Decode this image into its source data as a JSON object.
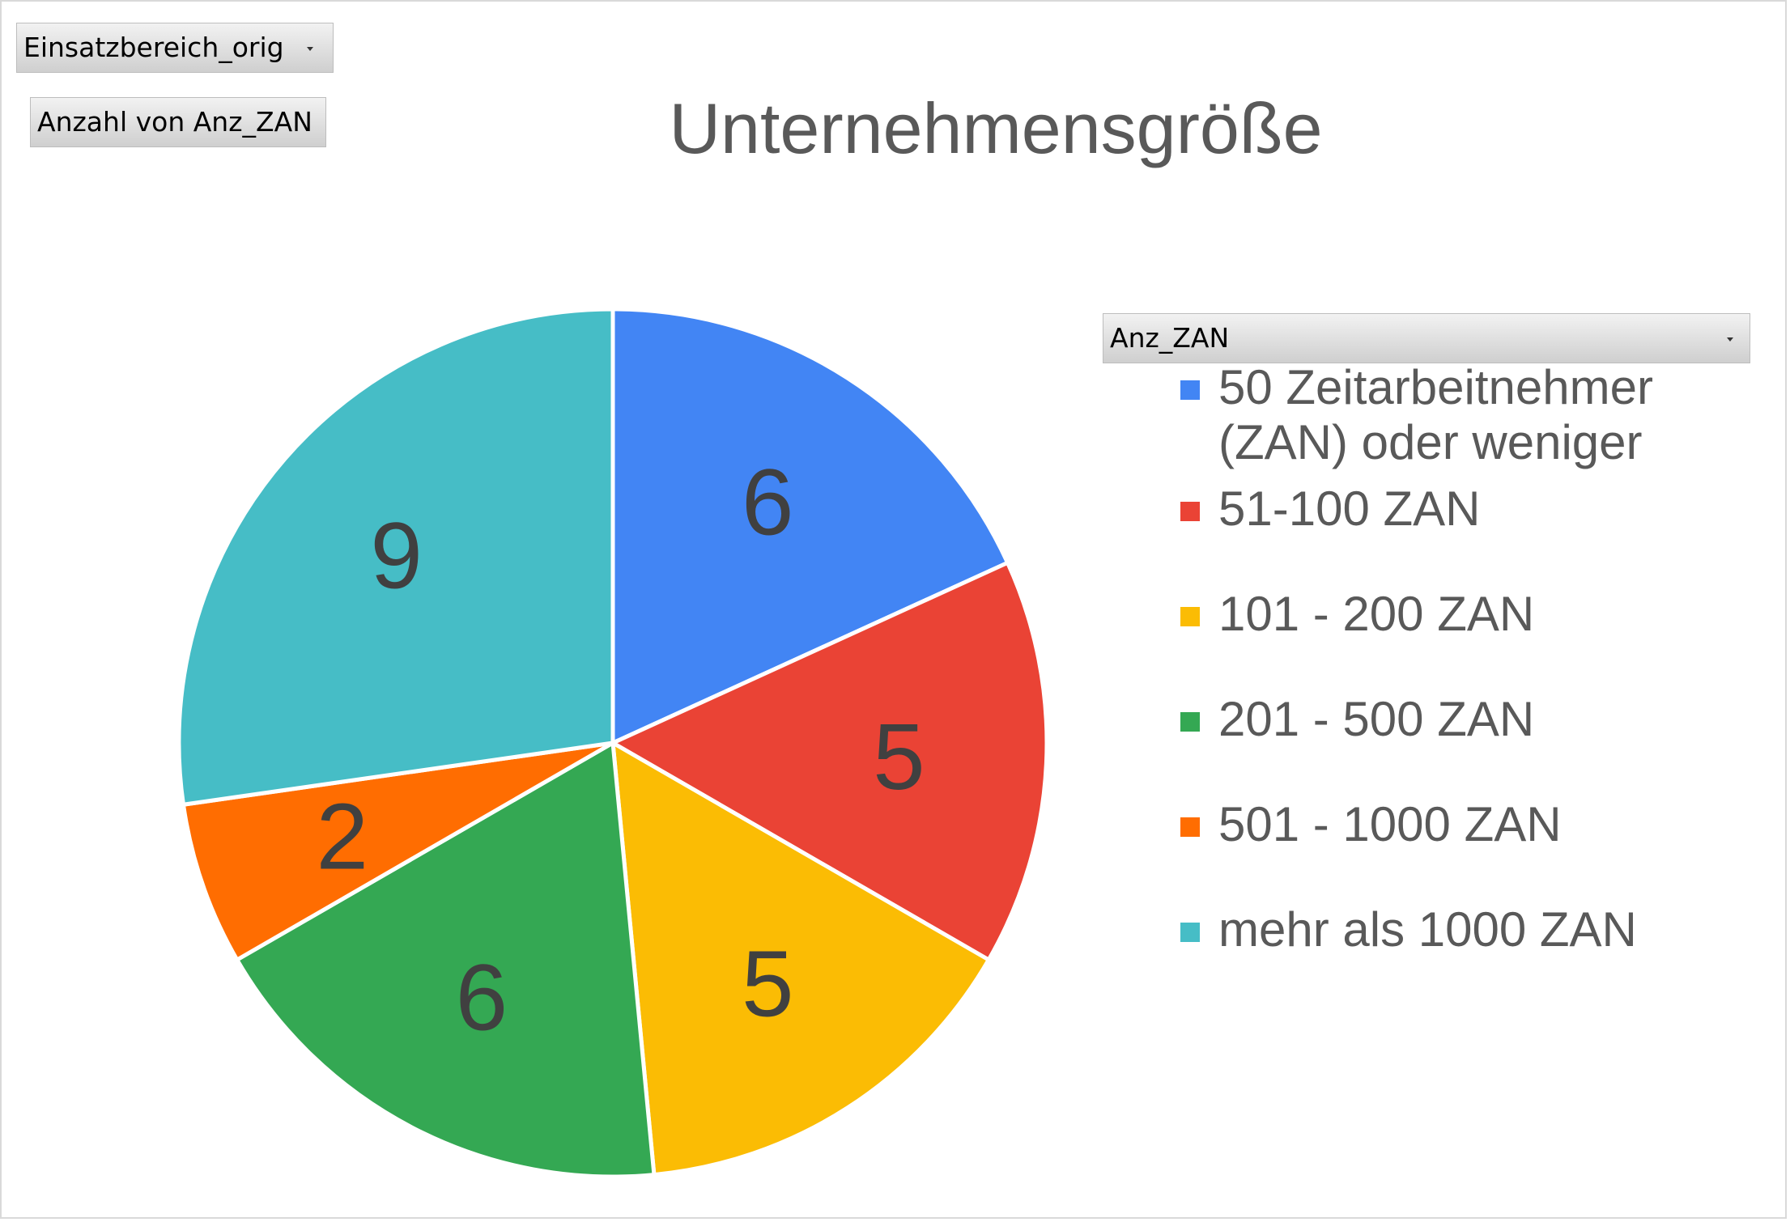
{
  "filter_field": {
    "label": "Einsatzbereich_orig",
    "icon": "chevron-down-icon"
  },
  "value_field": {
    "label": "Anzahl von Anz_ZAN"
  },
  "legend_field": {
    "label": "Anz_ZAN",
    "icon": "chevron-down-icon"
  },
  "colors": {
    "background": "#ffffff",
    "text": "#595959",
    "label": "#404040",
    "slice_border": "#ffffff"
  },
  "chart_data": {
    "type": "pie",
    "title": "Unternehmensgröße",
    "categories": [
      "50 Zeitarbeitnehmer (ZAN) oder weniger",
      "51-100 ZAN",
      "101 - 200 ZAN",
      "201 - 500 ZAN",
      "501 - 1000 ZAN",
      "mehr als 1000 ZAN"
    ],
    "values": [
      6,
      5,
      5,
      6,
      2,
      9
    ],
    "colors": [
      "#4285f4",
      "#ea4335",
      "#fbbc04",
      "#34a853",
      "#ff6d01",
      "#46bdc6"
    ],
    "data_labels": true,
    "legend": "right",
    "start_angle_deg": 0,
    "direction": "clockwise"
  }
}
